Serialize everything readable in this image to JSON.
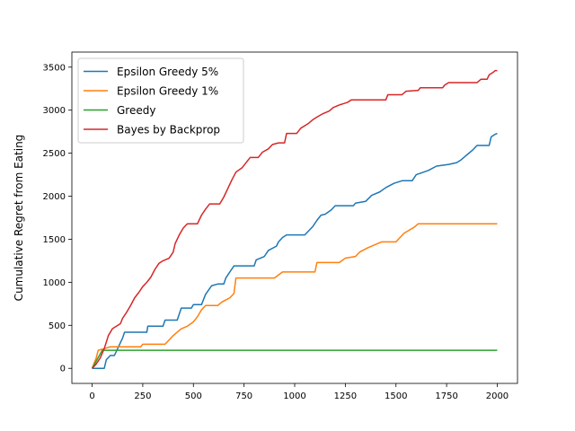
{
  "chart_data": {
    "type": "line",
    "title": "",
    "xlabel": "",
    "ylabel": "Cumulative Regret from Eating",
    "xlim": [
      -100,
      2100
    ],
    "ylim": [
      -175,
      3675
    ],
    "xticks": [
      0,
      250,
      500,
      750,
      1000,
      1250,
      1500,
      1750,
      2000
    ],
    "yticks": [
      0,
      500,
      1000,
      1500,
      2000,
      2500,
      3000,
      3500
    ],
    "grid": false,
    "legend_position": "top-left",
    "series": [
      {
        "name": "Epsilon Greedy 5%",
        "color": "#1f77b4",
        "points": [
          [
            0,
            0
          ],
          [
            60,
            0
          ],
          [
            70,
            100
          ],
          [
            90,
            150
          ],
          [
            110,
            150
          ],
          [
            120,
            200
          ],
          [
            130,
            250
          ],
          [
            140,
            300
          ],
          [
            150,
            350
          ],
          [
            160,
            420
          ],
          [
            200,
            420
          ],
          [
            270,
            420
          ],
          [
            275,
            490
          ],
          [
            350,
            490
          ],
          [
            360,
            560
          ],
          [
            420,
            560
          ],
          [
            430,
            630
          ],
          [
            440,
            700
          ],
          [
            490,
            700
          ],
          [
            500,
            740
          ],
          [
            540,
            740
          ],
          [
            550,
            800
          ],
          [
            560,
            860
          ],
          [
            575,
            910
          ],
          [
            590,
            960
          ],
          [
            620,
            980
          ],
          [
            650,
            980
          ],
          [
            660,
            1050
          ],
          [
            680,
            1120
          ],
          [
            700,
            1190
          ],
          [
            800,
            1190
          ],
          [
            810,
            1260
          ],
          [
            850,
            1300
          ],
          [
            870,
            1370
          ],
          [
            910,
            1420
          ],
          [
            920,
            1470
          ],
          [
            940,
            1520
          ],
          [
            960,
            1550
          ],
          [
            1050,
            1550
          ],
          [
            1070,
            1600
          ],
          [
            1090,
            1650
          ],
          [
            1110,
            1720
          ],
          [
            1130,
            1780
          ],
          [
            1150,
            1790
          ],
          [
            1180,
            1840
          ],
          [
            1200,
            1890
          ],
          [
            1290,
            1890
          ],
          [
            1300,
            1920
          ],
          [
            1350,
            1940
          ],
          [
            1380,
            2010
          ],
          [
            1420,
            2050
          ],
          [
            1450,
            2100
          ],
          [
            1490,
            2150
          ],
          [
            1530,
            2180
          ],
          [
            1580,
            2180
          ],
          [
            1600,
            2250
          ],
          [
            1660,
            2300
          ],
          [
            1700,
            2350
          ],
          [
            1760,
            2370
          ],
          [
            1800,
            2390
          ],
          [
            1820,
            2420
          ],
          [
            1840,
            2460
          ],
          [
            1860,
            2500
          ],
          [
            1880,
            2540
          ],
          [
            1900,
            2590
          ],
          [
            1960,
            2590
          ],
          [
            1970,
            2690
          ],
          [
            1990,
            2720
          ],
          [
            2000,
            2730
          ]
        ]
      },
      {
        "name": "Epsilon Greedy 1%",
        "color": "#ff7f0e",
        "points": [
          [
            0,
            0
          ],
          [
            20,
            120
          ],
          [
            30,
            210
          ],
          [
            60,
            230
          ],
          [
            90,
            250
          ],
          [
            240,
            250
          ],
          [
            250,
            280
          ],
          [
            360,
            280
          ],
          [
            380,
            330
          ],
          [
            400,
            380
          ],
          [
            420,
            420
          ],
          [
            440,
            460
          ],
          [
            470,
            490
          ],
          [
            500,
            540
          ],
          [
            520,
            600
          ],
          [
            540,
            680
          ],
          [
            560,
            730
          ],
          [
            620,
            730
          ],
          [
            640,
            770
          ],
          [
            680,
            820
          ],
          [
            700,
            870
          ],
          [
            710,
            1050
          ],
          [
            900,
            1050
          ],
          [
            940,
            1120
          ],
          [
            1100,
            1120
          ],
          [
            1110,
            1230
          ],
          [
            1220,
            1230
          ],
          [
            1250,
            1280
          ],
          [
            1300,
            1300
          ],
          [
            1320,
            1350
          ],
          [
            1360,
            1400
          ],
          [
            1400,
            1440
          ],
          [
            1430,
            1470
          ],
          [
            1500,
            1470
          ],
          [
            1520,
            1520
          ],
          [
            1540,
            1570
          ],
          [
            1590,
            1640
          ],
          [
            1610,
            1680
          ],
          [
            2000,
            1680
          ]
        ]
      },
      {
        "name": "Greedy",
        "color": "#2ca02c",
        "points": [
          [
            0,
            0
          ],
          [
            50,
            210
          ],
          [
            2000,
            210
          ]
        ]
      },
      {
        "name": "Bayes by Backprop",
        "color": "#d62728",
        "points": [
          [
            0,
            0
          ],
          [
            20,
            50
          ],
          [
            40,
            120
          ],
          [
            60,
            230
          ],
          [
            80,
            380
          ],
          [
            100,
            460
          ],
          [
            120,
            490
          ],
          [
            140,
            520
          ],
          [
            150,
            580
          ],
          [
            170,
            650
          ],
          [
            190,
            730
          ],
          [
            210,
            820
          ],
          [
            230,
            880
          ],
          [
            250,
            950
          ],
          [
            270,
            1000
          ],
          [
            290,
            1060
          ],
          [
            310,
            1150
          ],
          [
            330,
            1220
          ],
          [
            350,
            1250
          ],
          [
            380,
            1280
          ],
          [
            400,
            1350
          ],
          [
            410,
            1450
          ],
          [
            430,
            1550
          ],
          [
            450,
            1630
          ],
          [
            470,
            1680
          ],
          [
            520,
            1680
          ],
          [
            540,
            1780
          ],
          [
            560,
            1850
          ],
          [
            580,
            1910
          ],
          [
            630,
            1910
          ],
          [
            650,
            1990
          ],
          [
            670,
            2090
          ],
          [
            690,
            2190
          ],
          [
            710,
            2280
          ],
          [
            740,
            2330
          ],
          [
            760,
            2390
          ],
          [
            780,
            2450
          ],
          [
            820,
            2450
          ],
          [
            840,
            2510
          ],
          [
            870,
            2550
          ],
          [
            890,
            2600
          ],
          [
            920,
            2620
          ],
          [
            950,
            2620
          ],
          [
            960,
            2730
          ],
          [
            1010,
            2730
          ],
          [
            1030,
            2790
          ],
          [
            1050,
            2820
          ],
          [
            1070,
            2850
          ],
          [
            1090,
            2890
          ],
          [
            1110,
            2920
          ],
          [
            1140,
            2960
          ],
          [
            1170,
            2990
          ],
          [
            1190,
            3030
          ],
          [
            1220,
            3060
          ],
          [
            1260,
            3090
          ],
          [
            1280,
            3120
          ],
          [
            1450,
            3120
          ],
          [
            1460,
            3180
          ],
          [
            1530,
            3180
          ],
          [
            1550,
            3220
          ],
          [
            1610,
            3230
          ],
          [
            1620,
            3260
          ],
          [
            1730,
            3260
          ],
          [
            1740,
            3290
          ],
          [
            1760,
            3320
          ],
          [
            1900,
            3320
          ],
          [
            1920,
            3360
          ],
          [
            1950,
            3360
          ],
          [
            1960,
            3410
          ],
          [
            1980,
            3440
          ],
          [
            1990,
            3460
          ],
          [
            2000,
            3460
          ]
        ]
      }
    ]
  }
}
